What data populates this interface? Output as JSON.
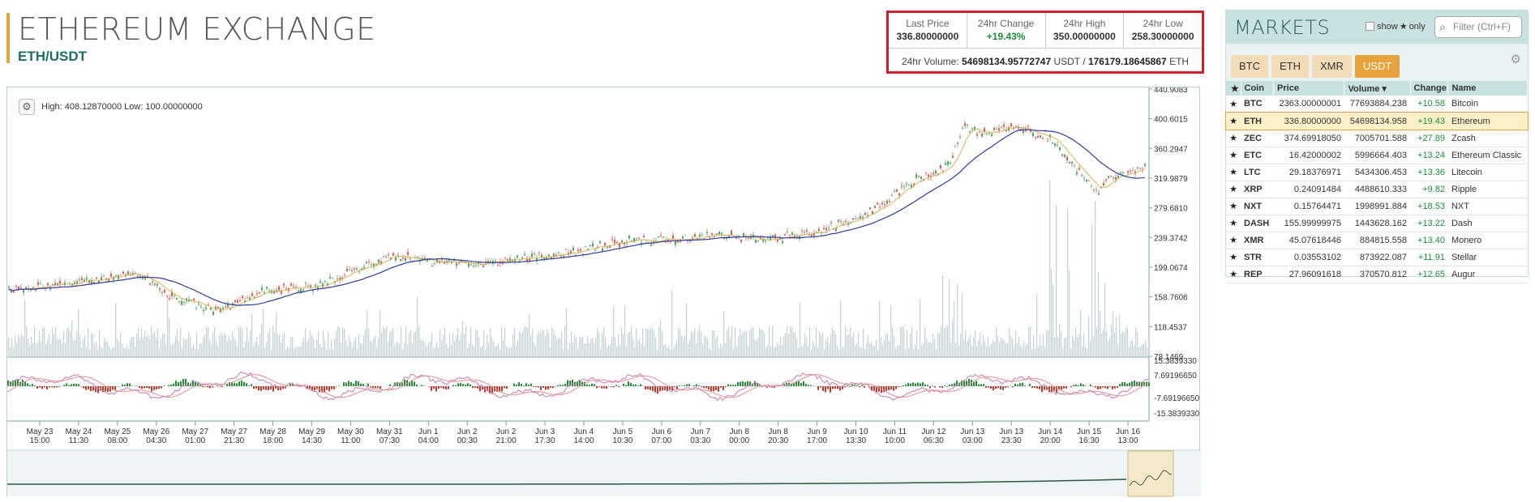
{
  "header": {
    "title": "ETHEREUM EXCHANGE",
    "pair": "ETH/USDT"
  },
  "stats": {
    "last_price_label": "Last Price",
    "last_price": "336.80000000",
    "change_label": "24hr Change",
    "change": "+19.43%",
    "high_label": "24hr High",
    "high": "350.00000000",
    "low_label": "24hr Low",
    "low": "258.30000000",
    "volume_label": "24hr Volume:",
    "volume_usdt": "54698134.95772747",
    "volume_usdt_unit": "USDT /",
    "volume_eth": "176179.18645867",
    "volume_eth_unit": "ETH"
  },
  "chart": {
    "high_low_text": "High: 408.12870000 Low: 100.00000000",
    "price_axis": [
      "440.9083",
      "400.6015",
      "360.2947",
      "319.9879",
      "279.6810",
      "239.3742",
      "199.0674",
      "158.7606",
      "118.4537",
      "78.1469"
    ],
    "macd_axis": [
      "15.3839330",
      "7.69196650",
      "-7.69196650",
      "-15.3839330"
    ],
    "dates": [
      [
        "May 23",
        "15:00"
      ],
      [
        "May 24",
        "11:30"
      ],
      [
        "May 25",
        "08:00"
      ],
      [
        "May 26",
        "04:30"
      ],
      [
        "May 27",
        "01:00"
      ],
      [
        "May 27",
        "21:30"
      ],
      [
        "May 28",
        "18:00"
      ],
      [
        "May 29",
        "14:30"
      ],
      [
        "May 30",
        "11:00"
      ],
      [
        "May 31",
        "07:30"
      ],
      [
        "Jun 1",
        "04:00"
      ],
      [
        "Jun 2",
        "00:30"
      ],
      [
        "Jun 2",
        "21:00"
      ],
      [
        "Jun 3",
        "17:30"
      ],
      [
        "Jun 4",
        "14:00"
      ],
      [
        "Jun 5",
        "10:30"
      ],
      [
        "Jun 6",
        "07:00"
      ],
      [
        "Jun 7",
        "03:30"
      ],
      [
        "Jun 8",
        "00:00"
      ],
      [
        "Jun 8",
        "20:30"
      ],
      [
        "Jun 9",
        "17:00"
      ],
      [
        "Jun 10",
        "13:30"
      ],
      [
        "Jun 11",
        "10:00"
      ],
      [
        "Jun 12",
        "06:30"
      ],
      [
        "Jun 13",
        "03:00"
      ],
      [
        "Jun 13",
        "23:30"
      ],
      [
        "Jun 14",
        "20:00"
      ],
      [
        "Jun 15",
        "16:30"
      ],
      [
        "Jun 16",
        "13:00"
      ]
    ],
    "colors": {
      "ma_long": "#2f3d9c",
      "ma_short": "#d4b35a",
      "candle_up": "#2a8a3a",
      "candle_down": "#c0392b",
      "volume": "#c4d3d1",
      "macd_line": "#c77ab0",
      "signal_line": "#e38f8f"
    }
  },
  "markets": {
    "title": "MARKETS",
    "show_label": "show",
    "only_label": "only",
    "filter_placeholder": "Filter (Ctrl+F)",
    "tabs": [
      "BTC",
      "ETH",
      "XMR",
      "USDT"
    ],
    "active_tab": "USDT",
    "columns": {
      "coin": "Coin",
      "price": "Price",
      "volume": "Volume ▾",
      "change": "Change",
      "name": "Name"
    },
    "rows": [
      {
        "coin": "BTC",
        "price": "2363.00000001",
        "volume": "77693884.238",
        "change": "+10.58",
        "name": "Bitcoin"
      },
      {
        "coin": "ETH",
        "price": "336.80000000",
        "volume": "54698134.958",
        "change": "+19.43",
        "name": "Ethereum"
      },
      {
        "coin": "ZEC",
        "price": "374.69918050",
        "volume": "7005701.588",
        "change": "+27.89",
        "name": "Zcash"
      },
      {
        "coin": "ETC",
        "price": "16.42000002",
        "volume": "5996664.403",
        "change": "+13.24",
        "name": "Ethereum Classic"
      },
      {
        "coin": "LTC",
        "price": "29.18376971",
        "volume": "5434306.453",
        "change": "+13.36",
        "name": "Litecoin"
      },
      {
        "coin": "XRP",
        "price": "0.24091484",
        "volume": "4488610.333",
        "change": "+9.82",
        "name": "Ripple"
      },
      {
        "coin": "NXT",
        "price": "0.15764471",
        "volume": "1998991.884",
        "change": "+18.53",
        "name": "NXT"
      },
      {
        "coin": "DASH",
        "price": "155.99999975",
        "volume": "1443628.162",
        "change": "+13.22",
        "name": "Dash"
      },
      {
        "coin": "XMR",
        "price": "45.07618446",
        "volume": "884815.558",
        "change": "+13.40",
        "name": "Monero"
      },
      {
        "coin": "STR",
        "price": "0.03553102",
        "volume": "873922.087",
        "change": "+11.91",
        "name": "Stellar"
      },
      {
        "coin": "REP",
        "price": "27.96091618",
        "volume": "370570.812",
        "change": "+12.65",
        "name": "Augur"
      }
    ]
  }
}
